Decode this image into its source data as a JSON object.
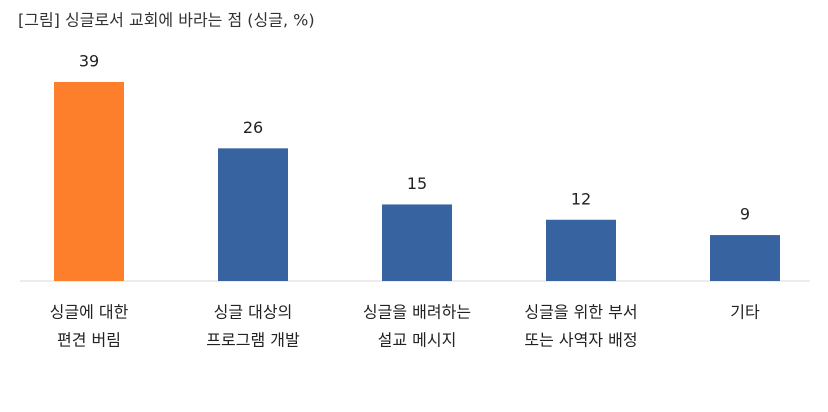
{
  "chart_data": {
    "type": "bar",
    "title": "[그림] 싱글로서 교회에 바라는 점 (싱글, %)",
    "categories": [
      [
        "싱글에 대한",
        "편견 버림"
      ],
      [
        "싱글 대상의",
        "프로그램 개발"
      ],
      [
        "싱글을 배려하는",
        "설교 메시지"
      ],
      [
        "싱글을 위한 부서",
        "또는 사역자 배정"
      ],
      [
        "기타"
      ]
    ],
    "values": [
      39,
      26,
      15,
      12,
      9
    ],
    "colors": [
      "#fd7f2c",
      "#3763a0",
      "#3763a0",
      "#3763a0",
      "#3763a0"
    ]
  }
}
